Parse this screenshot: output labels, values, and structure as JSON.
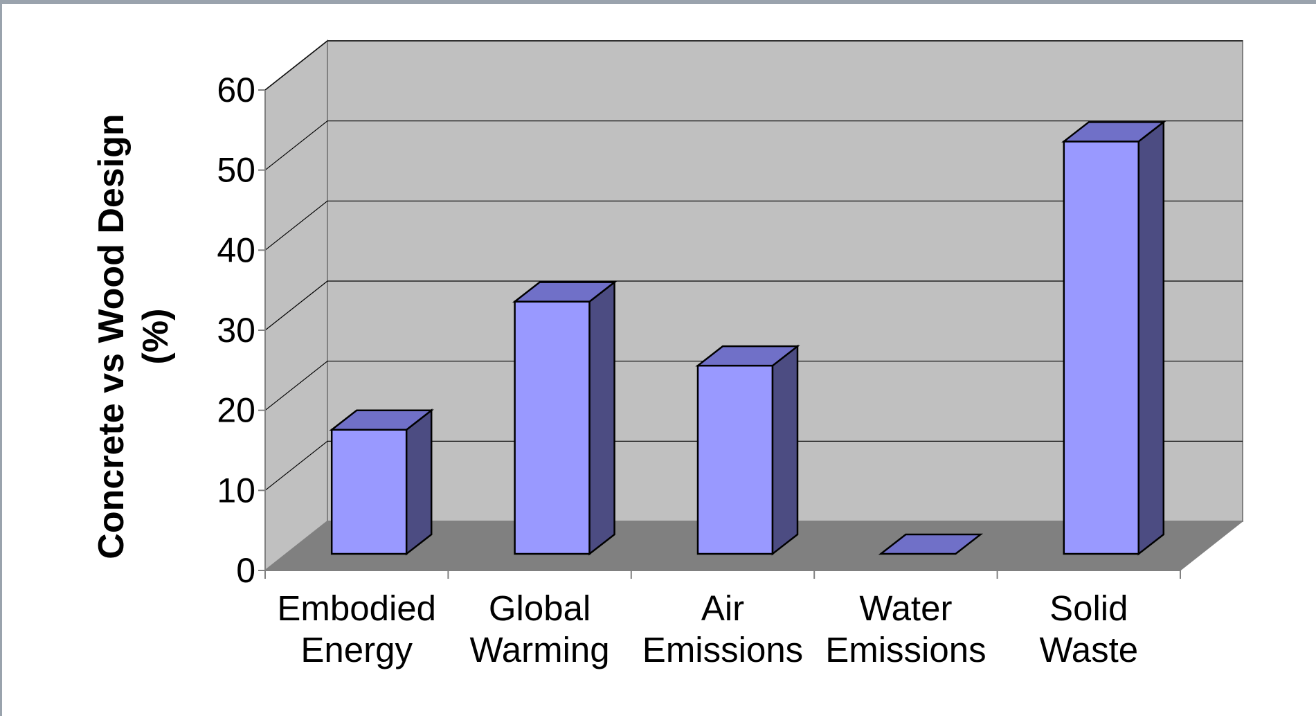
{
  "chart_data": {
    "type": "bar",
    "style": "3d-column",
    "title": "",
    "xlabel": "",
    "ylabel_lines": [
      "Concrete vs Wood Design",
      "(%)"
    ],
    "ylim": [
      0,
      60
    ],
    "yticks": [
      "0",
      "10",
      "20",
      "30",
      "40",
      "50",
      "60"
    ],
    "grid": true,
    "legend": "none",
    "categories": [
      [
        "Embodied",
        "Energy"
      ],
      [
        "Global",
        "Warming"
      ],
      [
        "Air",
        "Emissions"
      ],
      [
        "Water",
        "Emissions"
      ],
      [
        "Solid",
        "Waste"
      ]
    ],
    "values": [
      15.5,
      31.5,
      23.5,
      0,
      51.5
    ],
    "colors": {
      "bar_front": "#9999ff",
      "bar_top": "#7070c8",
      "bar_side": "#4c4c82",
      "back_wall": "#c0c0c0",
      "side_wall": "#c0c0c0",
      "floor": "#808080"
    }
  }
}
